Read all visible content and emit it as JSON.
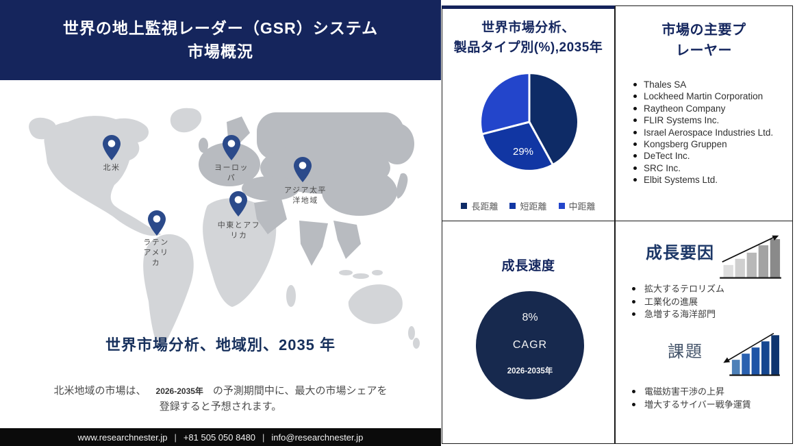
{
  "header": {
    "title_lines": [
      "世界の地上監視レーダー（GSR）システム",
      "市場概況"
    ]
  },
  "map_section": {
    "pins": [
      {
        "region": "north-america",
        "label_lines": [
          "北米"
        ]
      },
      {
        "region": "europe",
        "label_lines": [
          "ヨーロッ",
          "パ"
        ]
      },
      {
        "region": "asia-pacific",
        "label_lines": [
          "アジア太平",
          "洋地域"
        ]
      },
      {
        "region": "middle-east-africa",
        "label_lines": [
          "中東とアフ",
          "リカ"
        ]
      },
      {
        "region": "latin-america",
        "label_lines": [
          "ラテン",
          "アメリ",
          "カ"
        ]
      }
    ],
    "heading": "世界市場分析、地域別、2035 年",
    "note": {
      "prefix": "北米地域の市場は、",
      "period": "2026-2035年",
      "suffix": "の予測期間中に、最大の市場シェアを登録すると予想されます。"
    }
  },
  "footer": {
    "website": "www.researchnester.jp",
    "separator": "|",
    "phone": "+81 505 050 8480",
    "email": "info@researchnester.jp"
  },
  "pie_panel": {
    "title_lines": [
      "世界市場分析、",
      "製品タイプ別(%),2035年"
    ]
  },
  "cagr_panel": {
    "title": "成長速度"
  },
  "players_panel": {
    "title_lines": [
      "市場の主要プ",
      "レーヤー"
    ],
    "companies": [
      "Thales SA",
      "Lockheed Martin Corporation",
      "Raytheon Company",
      "FLIR Systems Inc.",
      "Israel Aerospace Industries Ltd.",
      "Kongsberg Gruppen",
      "DeTect Inc.",
      "SRC Inc.",
      "Elbit Systems Ltd."
    ]
  },
  "growth_panel": {
    "growth_title": "成長要因",
    "growth_items": [
      "拡大するテロリズム",
      "工業化の進展",
      "急増する海洋部門"
    ],
    "challenge_title": "課題",
    "challenge_items": [
      "電磁妨害干渉の上昇",
      "増大するサイバー戦争運賃"
    ]
  },
  "chart_data": [
    {
      "type": "pie",
      "title": "世界市場分析、製品タイプ別(%),2035年",
      "labels": [
        "長距離",
        "短距離",
        "中距離"
      ],
      "values": [
        42,
        29,
        29
      ],
      "colors": [
        "#0e2b66",
        "#1136a3",
        "#2345cb"
      ],
      "shown_value_label": "29%",
      "shown_value_slice": "短距離",
      "legend_position": "bottom"
    },
    {
      "type": "kpi",
      "title": "成長速度",
      "value": "8%",
      "metric": "CAGR",
      "period": "2026-2035年"
    }
  ]
}
